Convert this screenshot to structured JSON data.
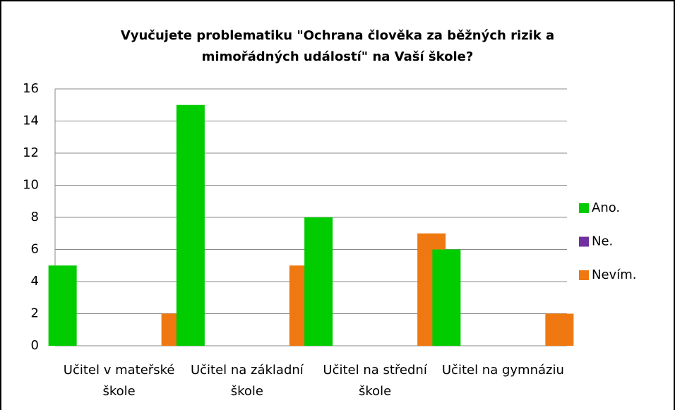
{
  "chart_data": {
    "type": "bar",
    "title": "Vyučujete problematiku \"Ochrana člověka za běžných rizik a mimořádných událostí\" na Vaší škole?",
    "categories": [
      "Učitel v mateřské škole",
      "Učitel na základní škole",
      "Učitel na střední škole",
      "Učitel na gymnáziu"
    ],
    "series": [
      {
        "name": "Ano.",
        "color": "#00cc00",
        "values": [
          5,
          15,
          8,
          6
        ]
      },
      {
        "name": "Ne.",
        "color": "#7030a0",
        "values": [
          0,
          0,
          0,
          0
        ]
      },
      {
        "name": "Nevím.",
        "color": "#f07810",
        "values": [
          2,
          5,
          7,
          2
        ]
      }
    ],
    "ylim": [
      0,
      16
    ],
    "yticks": [
      0,
      2,
      4,
      6,
      8,
      10,
      12,
      14,
      16
    ],
    "grid": true,
    "legend": "right"
  }
}
